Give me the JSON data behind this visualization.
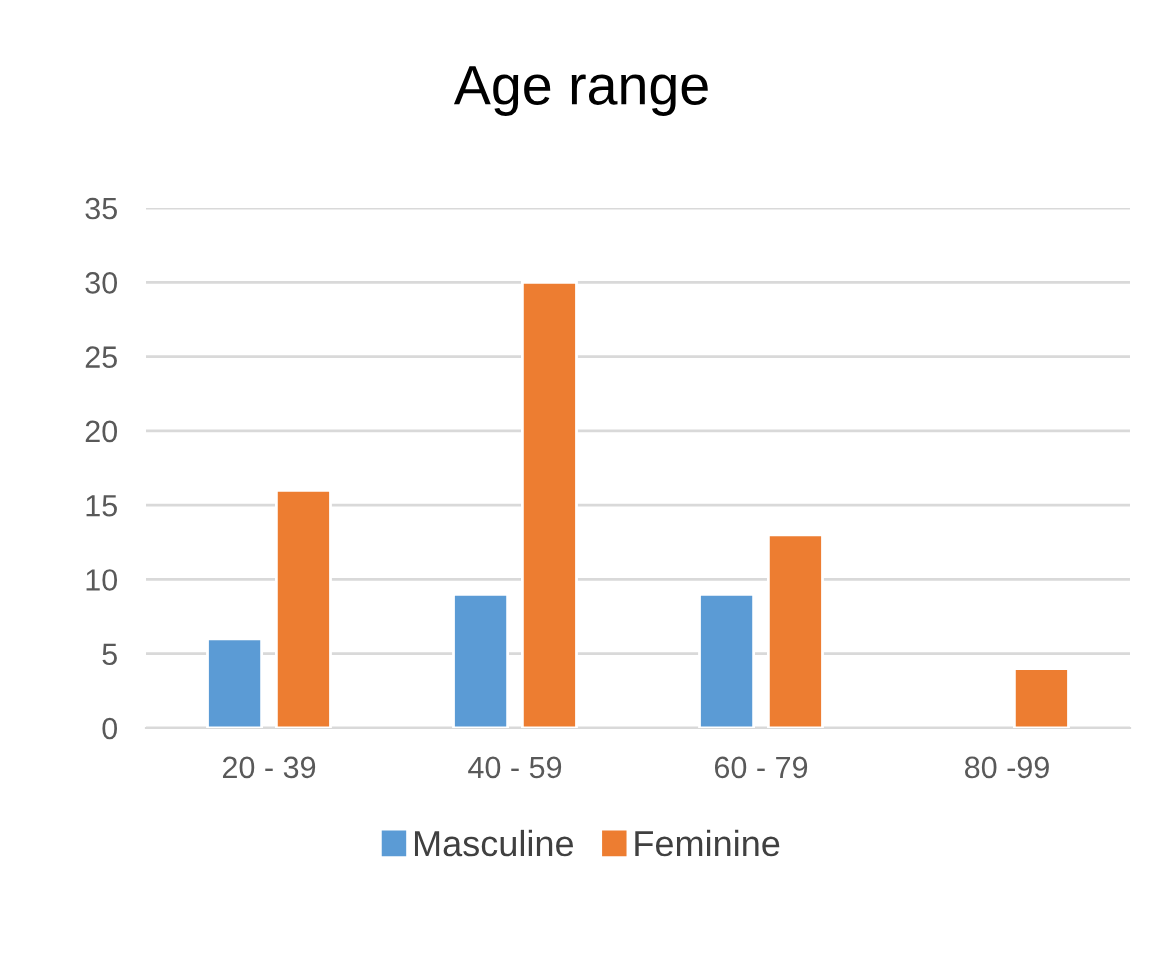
{
  "chart_data": {
    "type": "bar",
    "title": "Age range",
    "categories": [
      "20 - 39",
      "40 - 59",
      "60 - 79",
      "80 -99"
    ],
    "series": [
      {
        "name": "Masculine",
        "color": "#5b9bd5",
        "values": [
          6,
          9,
          9,
          null
        ]
      },
      {
        "name": "Feminine",
        "color": "#ed7d31",
        "values": [
          16,
          30,
          13,
          4
        ]
      }
    ],
    "ylim": [
      0,
      35
    ],
    "yticks": [
      0,
      5,
      10,
      15,
      20,
      25,
      30,
      35
    ],
    "grid": "y",
    "legend": "bottom"
  }
}
